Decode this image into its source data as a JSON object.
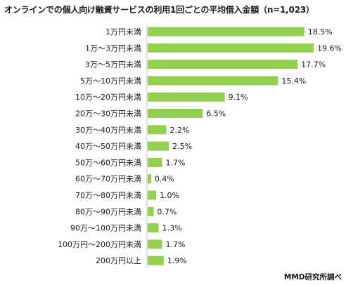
{
  "title": "オンラインでの個人向け融資サービスの利用1回ごとの平均借入金額（n=1,023）",
  "source": "MMD研究所調べ",
  "colors": {
    "bar": "#92d050",
    "text": "#1a1a1a"
  },
  "chart_data": {
    "type": "bar",
    "orientation": "horizontal",
    "title": "オンラインでの個人向け融資サービスの利用1回ごとの平均借入金額（n=1,023）",
    "categories": [
      "1万円未満",
      "1万～3万円未満",
      "3万～5万円未満",
      "5万～10万円未満",
      "10万～20万円未満",
      "20万～30万円未満",
      "30万～40万円未満",
      "40万～50万円未満",
      "50万～60万円未満",
      "60万～70万円未満",
      "70万～80万円未満",
      "80万～90万円未満",
      "90万～100万円未満",
      "100万円～200万円未満",
      "200万円以上"
    ],
    "values": [
      18.5,
      19.6,
      17.7,
      15.4,
      9.1,
      6.5,
      2.2,
      2.5,
      1.7,
      0.4,
      1.0,
      0.7,
      1.3,
      1.7,
      1.9
    ],
    "value_labels": [
      "18.5%",
      "19.6%",
      "17.7%",
      "15.4%",
      "9.1%",
      "6.5%",
      "2.2%",
      "2.5%",
      "1.7%",
      "0.4%",
      "1.0%",
      "0.7%",
      "1.3%",
      "1.7%",
      "1.9%"
    ],
    "unit": "%",
    "xlim": [
      0,
      20
    ],
    "grid": false,
    "legend": "none"
  }
}
